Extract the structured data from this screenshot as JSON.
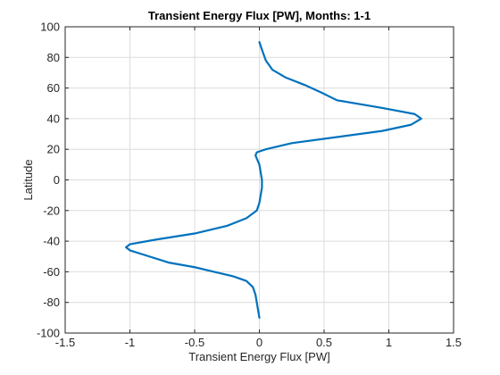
{
  "chart_data": {
    "type": "line",
    "title": "Transient Energy Flux [PW], Months: 1-1",
    "xlabel": "Transient Energy Flux [PW]",
    "ylabel": "Latitude",
    "xlim": [
      -1.5,
      1.5
    ],
    "ylim": [
      -100,
      100
    ],
    "xticks": [
      "-1.5",
      "-1",
      "-0.5",
      "0",
      "0.5",
      "1",
      "1.5"
    ],
    "yticks": [
      "100",
      "80",
      "60",
      "40",
      "20",
      "0",
      "-20",
      "-40",
      "-60",
      "-80",
      "-100"
    ],
    "grid": true,
    "series": [
      {
        "color": "#0072BD",
        "x": [
          0.0,
          -0.01,
          -0.02,
          -0.03,
          -0.05,
          -0.1,
          -0.2,
          -0.35,
          -0.5,
          -0.7,
          -0.85,
          -1.0,
          -1.03,
          -1.0,
          -0.8,
          -0.5,
          -0.25,
          -0.1,
          -0.02,
          0.0,
          0.01,
          0.02,
          0.02,
          0.01,
          0.0,
          -0.02,
          -0.03,
          -0.02,
          0.05,
          0.25,
          0.6,
          0.95,
          1.17,
          1.25,
          1.2,
          0.95,
          0.6,
          0.48,
          0.35,
          0.2,
          0.1,
          0.05,
          0.02,
          0.0
        ],
        "y": [
          -90,
          -85,
          -80,
          -75,
          -70,
          -66,
          -63,
          -60,
          -57,
          -54,
          -50,
          -46,
          -44,
          -42,
          -39,
          -35,
          -30,
          -25,
          -20,
          -15,
          -10,
          -5,
          0,
          5,
          10,
          14,
          16,
          18,
          20,
          24,
          28,
          32,
          36,
          40,
          43,
          47,
          52,
          57,
          62,
          67,
          72,
          78,
          85,
          90
        ]
      }
    ]
  }
}
